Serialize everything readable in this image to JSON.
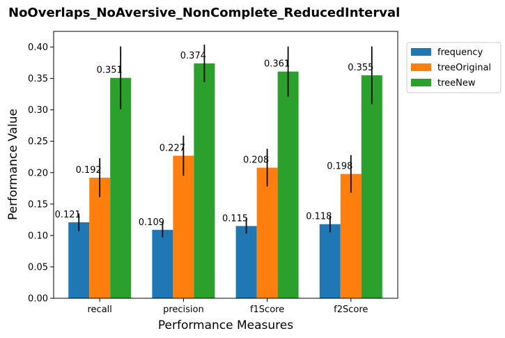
{
  "chart_data": {
    "type": "bar",
    "title": "NoOverlaps_NoAversive_NonComplete_ReducedInterval",
    "xlabel": "Performance Measures",
    "ylabel": "Performance Value",
    "categories": [
      "recall",
      "precision",
      "f1Score",
      "f2Score"
    ],
    "ylim": [
      0,
      0.425
    ],
    "yticks": [
      "0.00",
      "0.05",
      "0.10",
      "0.15",
      "0.20",
      "0.25",
      "0.30",
      "0.35",
      "0.40"
    ],
    "legend_position": "outside-top-right",
    "grid": false,
    "series": [
      {
        "name": "frequency",
        "color": "#1f77b4",
        "values": [
          0.121,
          0.109,
          0.115,
          0.118
        ],
        "labels": [
          "0.121",
          "0.109",
          "0.115",
          "0.118"
        ],
        "err": [
          0.014,
          0.012,
          0.012,
          0.013
        ]
      },
      {
        "name": "treeOriginal",
        "color": "#ff7f0e",
        "values": [
          0.192,
          0.227,
          0.208,
          0.198
        ],
        "labels": [
          "0.192",
          "0.227",
          "0.208",
          "0.198"
        ],
        "err": [
          0.031,
          0.032,
          0.03,
          0.03
        ]
      },
      {
        "name": "treeNew",
        "color": "#2ca02c",
        "values": [
          0.351,
          0.374,
          0.361,
          0.355
        ],
        "labels": [
          "0.351",
          "0.374",
          "0.361",
          "0.355"
        ],
        "err": [
          0.05,
          0.03,
          0.04,
          0.046
        ]
      }
    ]
  }
}
